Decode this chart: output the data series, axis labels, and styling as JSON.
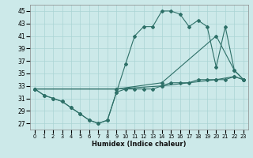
{
  "xlabel": "Humidex (Indice chaleur)",
  "bg_color": "#cce9e9",
  "grid_color": "#aad4d4",
  "line_color": "#2e7068",
  "xlim": [
    -0.5,
    23.5
  ],
  "ylim": [
    26.0,
    46.0
  ],
  "yticks": [
    27,
    29,
    31,
    33,
    35,
    37,
    39,
    41,
    43,
    45
  ],
  "xticks": [
    0,
    1,
    2,
    3,
    4,
    5,
    6,
    7,
    8,
    9,
    10,
    11,
    12,
    13,
    14,
    15,
    16,
    17,
    18,
    19,
    20,
    21,
    22,
    23
  ],
  "series": [
    {
      "x": [
        0,
        1,
        2,
        3,
        4,
        5,
        6,
        7,
        8,
        9,
        10,
        11,
        12,
        13,
        14,
        15,
        16,
        17,
        18,
        19,
        20,
        21,
        22,
        23
      ],
      "y": [
        32.5,
        31.5,
        31.0,
        30.5,
        29.5,
        28.5,
        27.5,
        27.0,
        27.5,
        32.0,
        36.5,
        41.0,
        42.5,
        42.5,
        45.0,
        45.0,
        44.5,
        42.5,
        43.5,
        42.5,
        36.0,
        42.5,
        35.5,
        34.0
      ]
    },
    {
      "x": [
        0,
        1,
        2,
        3,
        4,
        5,
        6,
        7,
        8,
        9,
        10,
        11,
        12,
        13,
        14,
        15,
        16,
        17,
        18,
        19,
        20,
        21,
        22,
        23
      ],
      "y": [
        32.5,
        31.5,
        31.0,
        30.5,
        29.5,
        28.5,
        27.5,
        27.0,
        27.5,
        32.0,
        32.5,
        32.5,
        32.5,
        32.5,
        33.0,
        33.5,
        33.5,
        33.5,
        34.0,
        34.0,
        34.0,
        34.0,
        34.5,
        34.0
      ]
    },
    {
      "x": [
        0,
        9,
        14,
        20,
        22,
        23
      ],
      "y": [
        32.5,
        32.5,
        33.5,
        41.0,
        35.5,
        34.0
      ]
    },
    {
      "x": [
        0,
        9,
        14,
        20,
        22,
        23
      ],
      "y": [
        32.5,
        32.5,
        33.0,
        34.0,
        34.5,
        34.0
      ]
    }
  ]
}
